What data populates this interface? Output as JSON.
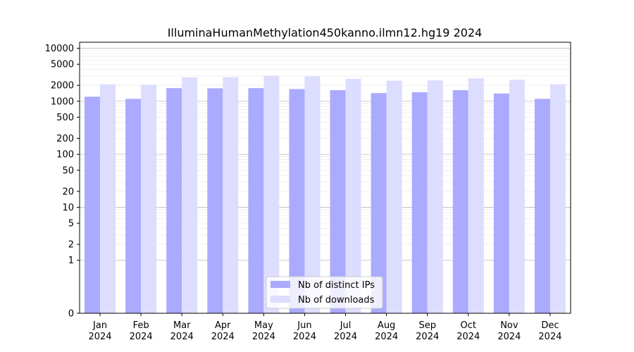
{
  "chart_data": {
    "type": "bar",
    "title": "IlluminaHumanMethylation450kanno.ilmn12.hg19 2024",
    "xlabel": "",
    "ylabel": "",
    "y_scale": "symlog",
    "ylim": [
      0,
      13000
    ],
    "y_ticks": [
      0,
      1,
      2,
      5,
      10,
      20,
      50,
      100,
      200,
      500,
      1000,
      2000,
      5000,
      10000
    ],
    "grid": "horizontal",
    "legend_position": "bottom-center",
    "categories": [
      [
        "Jan",
        "2024"
      ],
      [
        "Feb",
        "2024"
      ],
      [
        "Mar",
        "2024"
      ],
      [
        "Apr",
        "2024"
      ],
      [
        "May",
        "2024"
      ],
      [
        "Jun",
        "2024"
      ],
      [
        "Jul",
        "2024"
      ],
      [
        "Aug",
        "2024"
      ],
      [
        "Sep",
        "2024"
      ],
      [
        "Oct",
        "2024"
      ],
      [
        "Nov",
        "2024"
      ],
      [
        "Dec",
        "2024"
      ]
    ],
    "series": [
      {
        "name": "Nb of distinct IPs",
        "color": "#aaaaff",
        "values": [
          1220,
          1110,
          1770,
          1760,
          1770,
          1700,
          1620,
          1430,
          1480,
          1620,
          1400,
          1110
        ]
      },
      {
        "name": "Nb of downloads",
        "color": "#ddddff",
        "values": [
          2100,
          2050,
          2820,
          2850,
          3050,
          2950,
          2650,
          2450,
          2480,
          2700,
          2550,
          2100
        ]
      }
    ]
  }
}
